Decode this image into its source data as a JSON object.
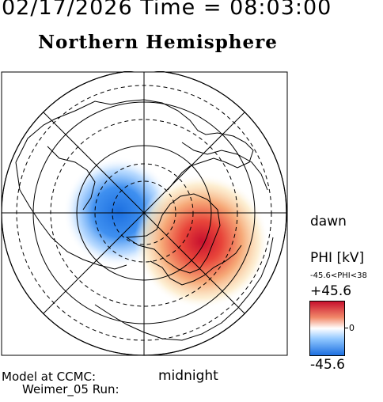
{
  "header": {
    "datetime": "02/17/2026 Time = 08:03:00",
    "title": "Northern Hemisphere"
  },
  "labels": {
    "dawn": "dawn",
    "midnight": "midnight",
    "model": "Model at CCMC:",
    "run": "Weimer_05 Run:"
  },
  "colorbar": {
    "quantity": "PHI [kV]",
    "range_text": "-45.6<PHI<38",
    "max": "+45.6",
    "zero": "0",
    "min": "-45.6",
    "colors": {
      "high": "#c8102e",
      "mid": "#ffffff",
      "low": "#1c6fe0"
    }
  },
  "map": {
    "projection": "polar stereographic",
    "features": [
      "coastlines",
      "latitude circles",
      "longitude lines",
      "potential pattern"
    ]
  }
}
